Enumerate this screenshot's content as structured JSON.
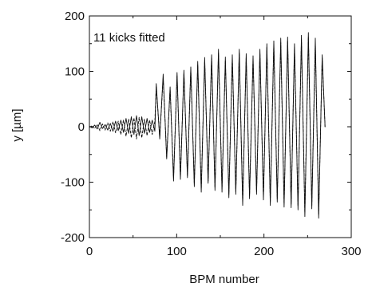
{
  "chart_data": {
    "type": "line",
    "title": "",
    "annotation": "11 kicks fitted",
    "xlabel": "BPM number",
    "ylabel": "y [µm]",
    "xlim": [
      0,
      300
    ],
    "ylim": [
      -200,
      200
    ],
    "xticks": [
      0,
      100,
      200,
      300
    ],
    "yticks": [
      -200,
      -100,
      0,
      100,
      200
    ],
    "xtick_labels": [
      "0",
      "100",
      "200",
      "300"
    ],
    "ytick_labels": [
      "-200",
      "-100",
      "0",
      "100",
      "200"
    ],
    "grid": false,
    "legend": "none",
    "series": [
      {
        "style": "solid",
        "color": "#111111",
        "x": [
          0,
          3,
          6,
          9,
          12,
          15,
          18,
          21,
          24,
          27,
          30,
          33,
          36,
          39,
          42,
          45,
          48,
          51,
          54,
          57,
          60,
          63,
          66,
          69,
          72,
          75,
          76.6,
          80.6,
          84.5,
          88.5,
          92.5,
          96.4,
          100.4,
          104.3,
          108.3,
          112.3,
          116.2,
          120.2,
          124.1,
          128.1,
          132.1,
          136,
          140,
          143.9,
          147.9,
          151.9,
          155.8,
          159.8,
          163.7,
          167.7,
          171.7,
          175.6,
          179.6,
          183.5,
          187.5,
          191.5,
          195.4,
          199.4,
          203.3,
          207.3,
          211.3,
          215.2,
          219.2,
          223.1,
          227.1,
          231.1,
          235,
          239,
          242.9,
          246.9,
          250.9,
          254.8,
          258.8,
          262.7,
          266.7,
          270
        ],
        "y": [
          1,
          -2,
          3,
          -4,
          8,
          -3,
          4,
          -6,
          6,
          -8,
          10,
          -7,
          12,
          -10,
          15,
          -12,
          18,
          -14,
          20,
          -16,
          18,
          -12,
          15,
          -10,
          12,
          -8,
          78,
          -22,
          95,
          -58,
          72,
          -98,
          98,
          -95,
          102,
          -92,
          108,
          -108,
          118,
          -118,
          125,
          -102,
          130,
          -115,
          140,
          -118,
          126,
          -128,
          130,
          -122,
          140,
          -142,
          132,
          -130,
          128,
          -122,
          140,
          -132,
          150,
          -142,
          155,
          -136,
          160,
          -145,
          162,
          -146,
          150,
          -150,
          165,
          -162,
          170,
          -148,
          160,
          -165,
          130,
          0
        ]
      },
      {
        "style": "dashed",
        "color": "#111111",
        "x": [
          0,
          3,
          6,
          9,
          12,
          15,
          18,
          21,
          24,
          27,
          30,
          33,
          36,
          39,
          42,
          45,
          48,
          51,
          54,
          57,
          60,
          63,
          66,
          69,
          72,
          75,
          76.6,
          80.6,
          84.5,
          88.5,
          92.5,
          96.4,
          100.4,
          104.3,
          108.3,
          112.3,
          116.2,
          120.2,
          124.1,
          128.1,
          132.1,
          136,
          140,
          143.9,
          147.9,
          151.9,
          155.8,
          159.8,
          163.7,
          167.7,
          171.7,
          175.6,
          179.6,
          183.5,
          187.5,
          191.5,
          195.4,
          199.4,
          203.3,
          207.3,
          211.3,
          215.2,
          219.2,
          223.1,
          227.1,
          231.1,
          235,
          239,
          242.9,
          246.9,
          250.9,
          254.8,
          258.8,
          262.7,
          266.7,
          270
        ],
        "y": [
          -1,
          2,
          -3,
          4,
          -7,
          5,
          -6,
          7,
          -8,
          9,
          -11,
          10,
          -14,
          12,
          -17,
          14,
          -20,
          16,
          -22,
          17,
          -20,
          14,
          -16,
          12,
          -14,
          10,
          72,
          -18,
          88,
          -55,
          68,
          -92,
          92,
          -90,
          97,
          -88,
          103,
          -103,
          112,
          -112,
          120,
          -98,
          124,
          -110,
          133,
          -112,
          120,
          -122,
          124,
          -117,
          133,
          -136,
          126,
          -124,
          122,
          -117,
          133,
          -126,
          143,
          -136,
          148,
          -130,
          152,
          -139,
          155,
          -140,
          143,
          -143,
          157,
          -155,
          162,
          -142,
          152,
          -158,
          124,
          0
        ]
      }
    ]
  }
}
